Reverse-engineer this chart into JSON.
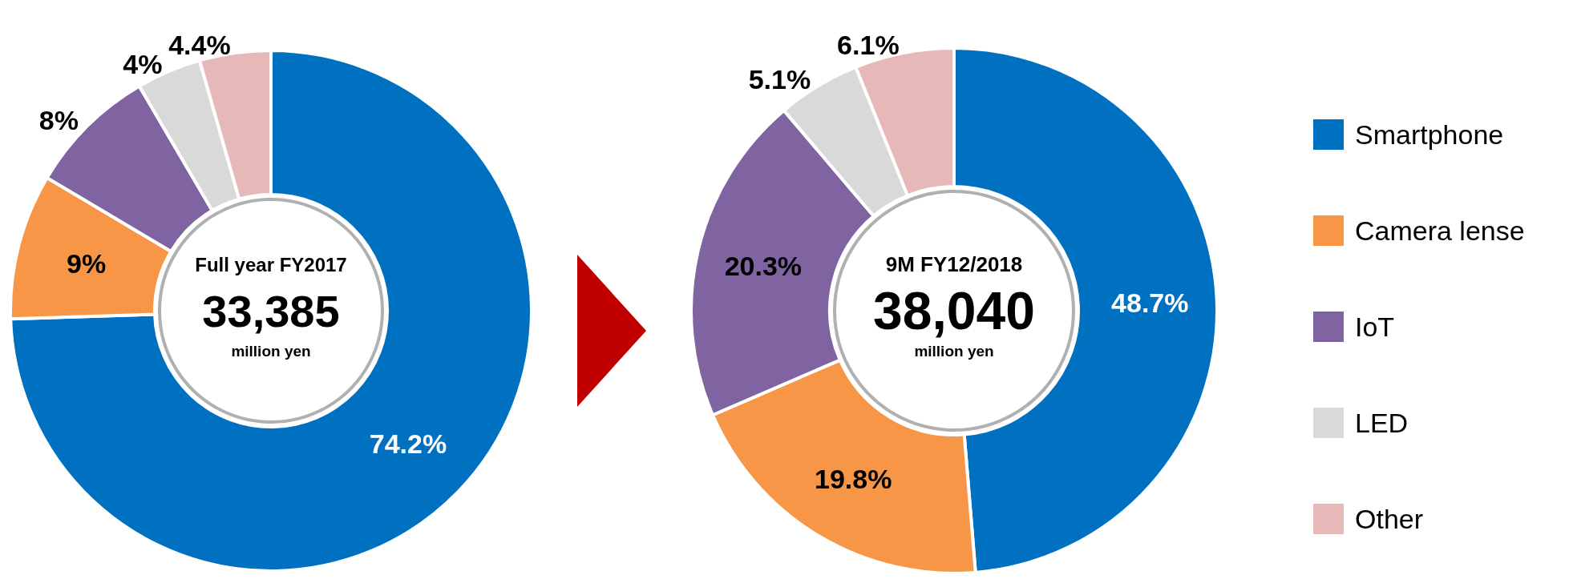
{
  "chart_data": [
    {
      "type": "donut",
      "title": "Full year FY2017",
      "subtitle": "33,385",
      "annotations": [
        "million yen"
      ],
      "categories": [
        null,
        null,
        null,
        null,
        null
      ],
      "values": [
        74.2,
        9,
        8,
        4,
        4.4
      ],
      "colors": [
        "#0070c0",
        "#f79646",
        "#8064a2",
        "#d9d9d9",
        "#e6b9b8"
      ],
      "value_labels": [
        "74.2%",
        "9%",
        "8%",
        "4%",
        "4.4%"
      ],
      "legend": false
    },
    {
      "type": "donut",
      "title": "9M FY12/2018",
      "subtitle": "38,040",
      "annotations": [
        "million yen"
      ],
      "categories": [
        "Smartphone",
        "Camera lense",
        "IoT",
        "LED",
        "Other"
      ],
      "values": [
        48.7,
        19.8,
        20.3,
        5.1,
        6.1
      ],
      "colors": [
        "#0070c0",
        "#f79646",
        "#8064a2",
        "#d9d9d9",
        "#e6b9b8"
      ],
      "value_labels": [
        "48.7%",
        "19.8%",
        "20.3%",
        "5.1%",
        "6.1%"
      ],
      "legend": "right"
    }
  ]
}
